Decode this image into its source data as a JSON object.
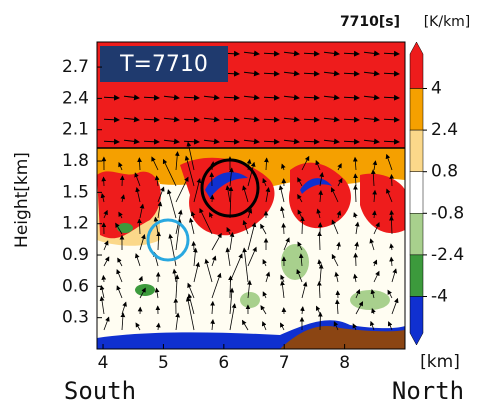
{
  "chart_data": {
    "type": "contourf",
    "title": "T=7710",
    "time_label": "7710[s]",
    "ylabel": "Height[km]",
    "xlabel": "[km]",
    "left_label": "South",
    "right_label": "North",
    "xlim": [
      3.9,
      9.0
    ],
    "ylim": [
      0,
      2.94
    ],
    "xticks": [
      4,
      5,
      6,
      7,
      8
    ],
    "yticks": [
      0.3,
      0.6,
      0.9,
      1.2,
      1.5,
      1.8,
      2.1,
      2.4,
      2.7
    ],
    "colorbar": {
      "label": "[K/km]",
      "ticks": [
        4,
        2.4,
        0.8,
        -0.8,
        -2.4,
        -4
      ],
      "colors": [
        "#ee1c1c",
        "#f5a000",
        "#fbd88a",
        "#ffffff",
        "#a8d08d",
        "#3c9a3c",
        "#1030d0"
      ]
    }
  }
}
